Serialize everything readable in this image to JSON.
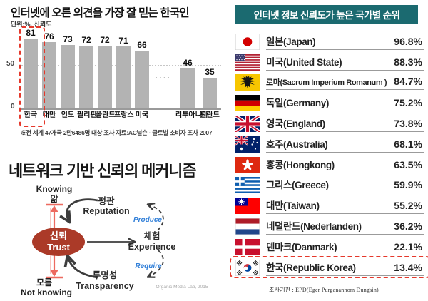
{
  "colors": {
    "panel_header_teal": "#1b6a70",
    "highlight_red": "#e5382b",
    "bar_gray": "#b3b3b3",
    "trust_ellipse_red": "#ab3a28",
    "axis_arrow_red": "#ed6a60",
    "produce_require_blue": "#2f7ed8"
  },
  "chart_data": [
    {
      "type": "bar",
      "title": "인터넷에 오른 의견을 가장 잘 믿는 한국인",
      "unit": "단위:%, 신뢰도",
      "categories": [
        "한국",
        "대만",
        "인도",
        "필리핀",
        "폴란드",
        "프랑스",
        "미국",
        "리투아니아",
        "핀란드"
      ],
      "values": [
        81,
        76,
        73,
        72,
        72,
        71,
        66,
        46,
        35
      ],
      "highlight_category": "한국",
      "gap_after_index": 6,
      "gap_dots": "····",
      "ylim": [
        0,
        100
      ],
      "y_ticks": [
        "50",
        "0"
      ],
      "grid": "dotted line at 50",
      "source": "※전 세계 47개국 2만6486명 대상 조사   자료:AC닐슨 · 글로벌 소비자 조사 2007"
    },
    {
      "type": "table",
      "title": "인터넷 정보 신뢰도가 높은 국가별 순위",
      "rows": [
        {
          "flag": "jp",
          "name": "일본(Japan)",
          "value": "96.8%"
        },
        {
          "flag": "us",
          "name": "미국(United State)",
          "value": "88.3%"
        },
        {
          "flag": "hre",
          "name": "로마(Sacrum Imperium Romanum )",
          "value": "84.7%"
        },
        {
          "flag": "de",
          "name": "독일(Germany)",
          "value": "75.2%"
        },
        {
          "flag": "gb",
          "name": "영국(England)",
          "value": "73.8%"
        },
        {
          "flag": "au",
          "name": "호주(Australia)",
          "value": "68.1%"
        },
        {
          "flag": "hk",
          "name": "홍콩(Hongkong)",
          "value": "63.5%"
        },
        {
          "flag": "gr",
          "name": "그리스(Greece)",
          "value": "59.9%"
        },
        {
          "flag": "tw",
          "name": "대만(Taiwan)",
          "value": "55.2%"
        },
        {
          "flag": "nl",
          "name": "네덜란드(Nederlanden)",
          "value": "36.2%"
        },
        {
          "flag": "dk",
          "name": "덴마크(Danmark)",
          "value": "22.1%"
        },
        {
          "flag": "kr",
          "name": "한국(Republic Korea)",
          "value": "13.4%",
          "highlight": true
        }
      ],
      "source": "조사기관 : EPD(Eger Purganannom Dungsin)"
    }
  ],
  "diagram": {
    "title": "네트워크 기반 신뢰의 메커니즘",
    "nodes": {
      "knowing_en": "Knowing",
      "knowing_ko": "앎",
      "trust_ko": "신뢰",
      "trust_en": "Trust",
      "reputation_ko": "평판",
      "reputation_en": "Reputation",
      "experience_ko": "체험",
      "experience_en": "Experience",
      "transparency_ko": "투명성",
      "transparency_en": "Transparency",
      "not_knowing_ko": "모름",
      "not_knowing_en": "Not knowing",
      "produce_label": "Produce",
      "require_label": "Require"
    },
    "credit": "Organic Media Lab, 2015"
  }
}
